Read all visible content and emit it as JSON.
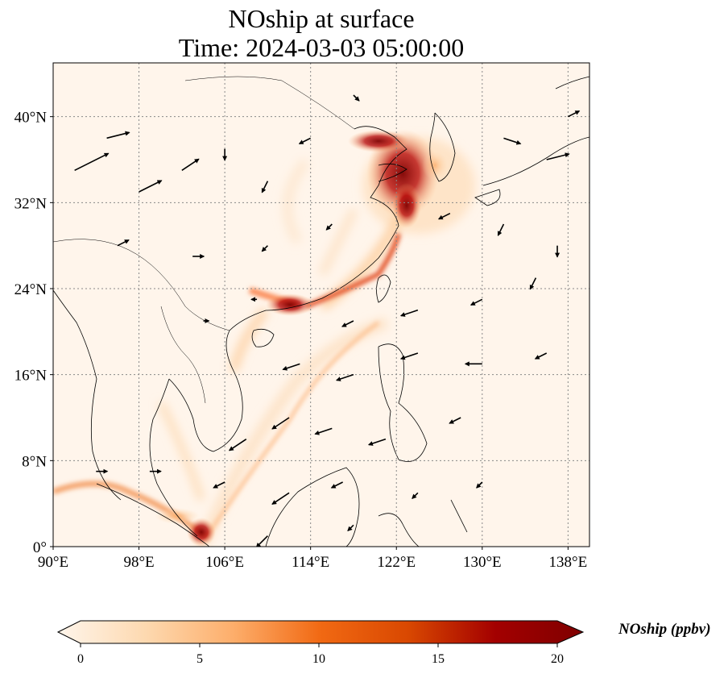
{
  "title": {
    "line1": "NOship at surface",
    "line2": "Time: 2024-03-03 05:00:00"
  },
  "map": {
    "lon_range": [
      90,
      140
    ],
    "lat_range": [
      0,
      45
    ],
    "lon_ticks": [
      {
        "value": 90,
        "label": "90°E"
      },
      {
        "value": 98,
        "label": "98°E"
      },
      {
        "value": 106,
        "label": "106°E"
      },
      {
        "value": 114,
        "label": "114°E"
      },
      {
        "value": 122,
        "label": "122°E"
      },
      {
        "value": 130,
        "label": "130°E"
      },
      {
        "value": 138,
        "label": "138°E"
      }
    ],
    "lat_ticks": [
      {
        "value": 0,
        "label": "0°"
      },
      {
        "value": 8,
        "label": "8°N"
      },
      {
        "value": 16,
        "label": "16°N"
      },
      {
        "value": 24,
        "label": "24°N"
      },
      {
        "value": 32,
        "label": "32°N"
      },
      {
        "value": 40,
        "label": "40°N"
      }
    ],
    "gridlines": true
  },
  "colorbar": {
    "label": "NOship (ppbv)",
    "min": 0,
    "max": 20,
    "ticks": [
      {
        "value": 0,
        "label": "0"
      },
      {
        "value": 5,
        "label": "5"
      },
      {
        "value": 10,
        "label": "10"
      },
      {
        "value": 15,
        "label": "15"
      },
      {
        "value": 20,
        "label": "20"
      }
    ],
    "colors": [
      "#fff5eb",
      "#fdd9b0",
      "#fdae6b",
      "#f16913",
      "#d94801",
      "#a30000",
      "#7f0000"
    ]
  },
  "chart_data": {
    "type": "heatmap",
    "title": "NOship at surface\nTime: 2024-03-03 05:00:00",
    "variable": "NOship",
    "units": "ppbv",
    "value_range": [
      0,
      20
    ],
    "xlim": [
      90,
      140
    ],
    "ylim": [
      0,
      45
    ],
    "hotspots": [
      {
        "region": "Bohai Sea / Yellow Sea",
        "lon": 123,
        "lat": 35,
        "value": 20
      },
      {
        "region": "Yangtze River Delta",
        "lon": 121.5,
        "lat": 31,
        "value": 18
      },
      {
        "region": "Pearl River Delta",
        "lon": 113.5,
        "lat": 22.3,
        "value": 20
      },
      {
        "region": "Taiwan Strait",
        "lon": 119,
        "lat": 25,
        "value": 8
      },
      {
        "region": "Strait of Malacca / Singapore",
        "lon": 104,
        "lat": 1.3,
        "value": 18
      },
      {
        "region": "Andaman Sea ship lane",
        "lon": 96,
        "lat": 6,
        "value": 6
      },
      {
        "region": "South China Sea ship lane",
        "lon": 110,
        "lat": 10,
        "value": 4
      }
    ],
    "wind_vectors": [
      {
        "lon": 92,
        "lat": 35,
        "u": 6,
        "v": 3
      },
      {
        "lon": 95,
        "lat": 38,
        "u": 4,
        "v": 1
      },
      {
        "lon": 98,
        "lat": 33,
        "u": 4,
        "v": 2
      },
      {
        "lon": 102,
        "lat": 35,
        "u": 3,
        "v": 2
      },
      {
        "lon": 106,
        "lat": 37,
        "u": 0,
        "v": -2
      },
      {
        "lon": 110,
        "lat": 34,
        "u": -1,
        "v": -2
      },
      {
        "lon": 114,
        "lat": 38,
        "u": -2,
        "v": -1
      },
      {
        "lon": 118,
        "lat": 42,
        "u": 1,
        "v": -1
      },
      {
        "lon": 132,
        "lat": 38,
        "u": 3,
        "v": -1
      },
      {
        "lon": 136,
        "lat": 36,
        "u": 4,
        "v": 1
      },
      {
        "lon": 138,
        "lat": 40,
        "u": 2,
        "v": 1
      },
      {
        "lon": 96,
        "lat": 28,
        "u": 2,
        "v": 1
      },
      {
        "lon": 103,
        "lat": 27,
        "u": 2,
        "v": 0
      },
      {
        "lon": 110,
        "lat": 28,
        "u": -1,
        "v": -1
      },
      {
        "lon": 116,
        "lat": 30,
        "u": -1,
        "v": -1
      },
      {
        "lon": 127,
        "lat": 31,
        "u": -2,
        "v": -1
      },
      {
        "lon": 132,
        "lat": 30,
        "u": -1,
        "v": -2
      },
      {
        "lon": 137,
        "lat": 28,
        "u": 0,
        "v": -2
      },
      {
        "lon": 104,
        "lat": 21,
        "u": 1,
        "v": 0
      },
      {
        "lon": 109,
        "lat": 23,
        "u": -1,
        "v": 0
      },
      {
        "lon": 118,
        "lat": 21,
        "u": -2,
        "v": -1
      },
      {
        "lon": 124,
        "lat": 22,
        "u": -3,
        "v": -1
      },
      {
        "lon": 130,
        "lat": 23,
        "u": -2,
        "v": -1
      },
      {
        "lon": 135,
        "lat": 25,
        "u": -1,
        "v": -2
      },
      {
        "lon": 113,
        "lat": 17,
        "u": -3,
        "v": -1
      },
      {
        "lon": 118,
        "lat": 16,
        "u": -3,
        "v": -1
      },
      {
        "lon": 124,
        "lat": 18,
        "u": -3,
        "v": -1
      },
      {
        "lon": 130,
        "lat": 17,
        "u": -3,
        "v": 0
      },
      {
        "lon": 136,
        "lat": 18,
        "u": -2,
        "v": -1
      },
      {
        "lon": 108,
        "lat": 10,
        "u": -3,
        "v": -2
      },
      {
        "lon": 112,
        "lat": 12,
        "u": -3,
        "v": -2
      },
      {
        "lon": 116,
        "lat": 11,
        "u": -3,
        "v": -1
      },
      {
        "lon": 121,
        "lat": 10,
        "u": -3,
        "v": -1
      },
      {
        "lon": 128,
        "lat": 12,
        "u": -2,
        "v": -1
      },
      {
        "lon": 94,
        "lat": 7,
        "u": 2,
        "v": 0
      },
      {
        "lon": 99,
        "lat": 7,
        "u": 2,
        "v": 0
      },
      {
        "lon": 106,
        "lat": 6,
        "u": -2,
        "v": -1
      },
      {
        "lon": 112,
        "lat": 5,
        "u": -3,
        "v": -2
      },
      {
        "lon": 117,
        "lat": 6,
        "u": -2,
        "v": -1
      },
      {
        "lon": 124,
        "lat": 5,
        "u": -1,
        "v": -1
      },
      {
        "lon": 130,
        "lat": 6,
        "u": -1,
        "v": -1
      },
      {
        "lon": 110,
        "lat": 1,
        "u": -2,
        "v": -2
      },
      {
        "lon": 118,
        "lat": 2,
        "u": -1,
        "v": -1
      }
    ]
  }
}
